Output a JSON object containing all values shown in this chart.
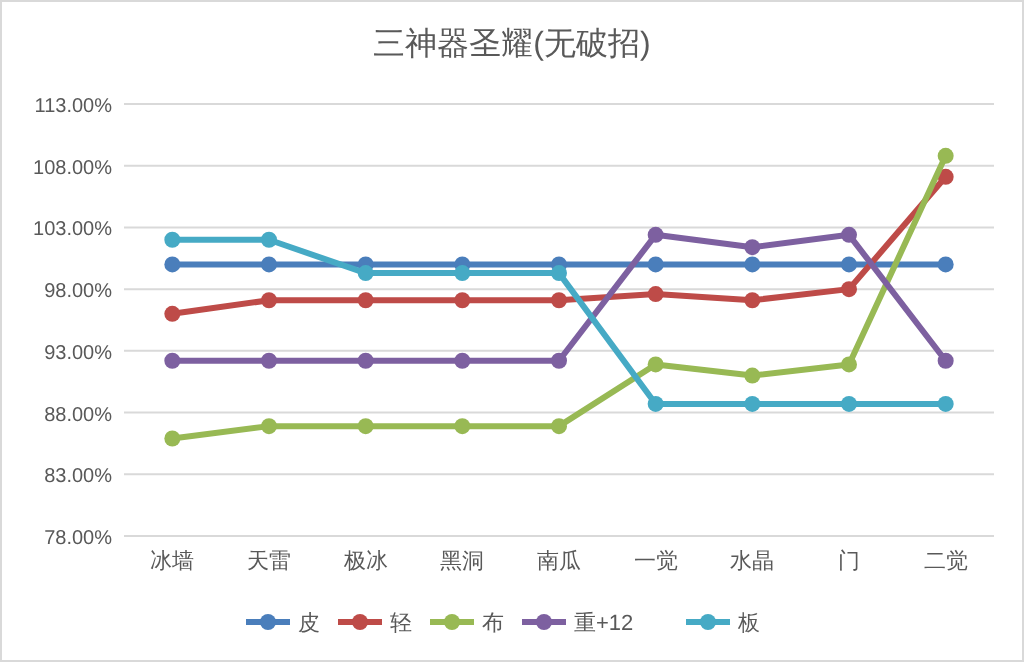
{
  "chart_data": {
    "type": "line",
    "title": "三神器圣耀(无破招)",
    "categories": [
      "冰墙",
      "天雷",
      "极冰",
      "黑洞",
      "南瓜",
      "一觉",
      "水晶",
      "门",
      "二觉"
    ],
    "series": [
      {
        "name": "皮",
        "color": "#4a7ebb",
        "values": [
          100,
          100,
          100,
          100,
          100,
          100,
          100,
          100,
          100
        ]
      },
      {
        "name": "轻",
        "color": "#be4b48",
        "values": [
          96.0,
          97.1,
          97.1,
          97.1,
          97.1,
          97.6,
          97.1,
          98.0,
          107.1
        ]
      },
      {
        "name": "布",
        "color": "#98b954",
        "values": [
          85.9,
          86.9,
          86.9,
          86.9,
          86.9,
          91.9,
          91.0,
          91.9,
          108.8
        ]
      },
      {
        "name": "重+12",
        "color": "#7d60a0",
        "values": [
          92.2,
          92.2,
          92.2,
          92.2,
          92.2,
          102.4,
          101.4,
          102.4,
          92.2
        ]
      },
      {
        "name": "板",
        "color": "#46aac5",
        "values": [
          102.0,
          102.0,
          99.3,
          99.3,
          99.3,
          88.7,
          88.7,
          88.7,
          88.7
        ]
      }
    ],
    "ylim": [
      78,
      113
    ],
    "yticks": [
      {
        "value": 78,
        "label": "78.00%"
      },
      {
        "value": 83,
        "label": "83.00%"
      },
      {
        "value": 88,
        "label": "88.00%"
      },
      {
        "value": 93,
        "label": "93.00%"
      },
      {
        "value": 98,
        "label": "98.00%"
      },
      {
        "value": 103,
        "label": "103.00%"
      },
      {
        "value": 108,
        "label": "108.00%"
      },
      {
        "value": 113,
        "label": "113.00%"
      }
    ],
    "grid": "y",
    "legend": "bottom",
    "marker": "circle",
    "line_style": "solid"
  }
}
